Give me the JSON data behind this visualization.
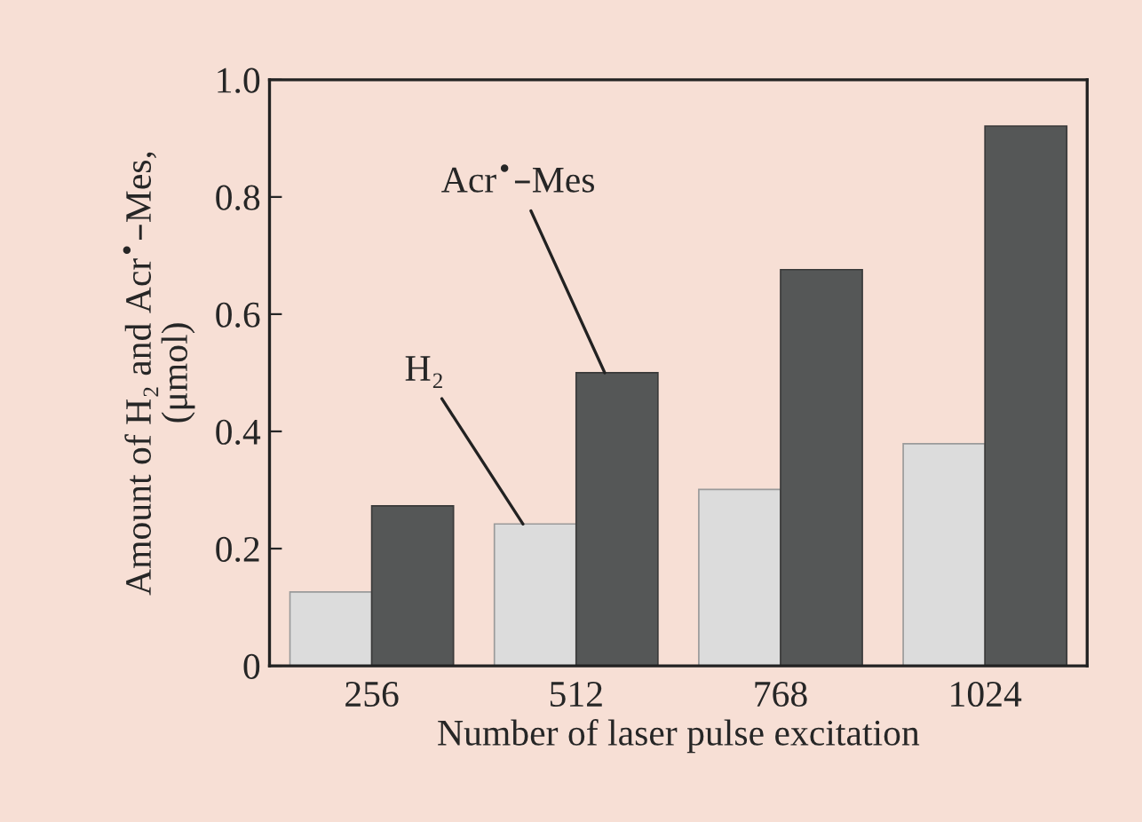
{
  "chart_data": {
    "type": "bar",
    "xlabel": "Number of laser pulse excitation",
    "ylabel": "Amount of H₂ and Acr$^{•}$–Mes,\n(μmol)",
    "categories": [
      "256",
      "512",
      "768",
      "1024"
    ],
    "series": [
      {
        "name": "H₂",
        "color": "#dcdcdc",
        "values": [
          0.126,
          0.242,
          0.301,
          0.379
        ]
      },
      {
        "name": "Acr$^{•}$–Mes",
        "color": "#555757",
        "values": [
          0.273,
          0.5,
          0.676,
          0.921
        ]
      }
    ],
    "ylim": [
      0,
      1.0
    ],
    "yticks": [
      0,
      0.2,
      0.4,
      0.6,
      0.8,
      {
        "value": 1.0,
        "label": "1.0"
      }
    ],
    "grid": false,
    "legend": false
  }
}
